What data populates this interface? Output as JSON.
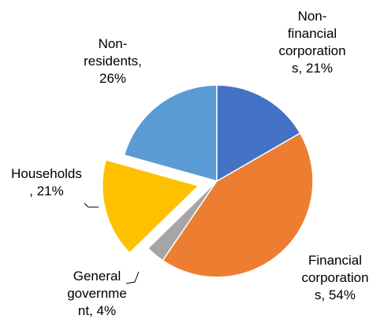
{
  "chart_data": {
    "type": "pie",
    "labels": [
      "Non-financial corporations, 21%",
      "Financial corporations, 54%",
      "General government, 4%",
      "Households, 21%",
      "Non-residents, 26%"
    ],
    "values": [
      21,
      54,
      4,
      21,
      26
    ],
    "colors": [
      "#4472c4",
      "#ed7d31",
      "#a5a5a5",
      "#ffc000",
      "#5b9bd5"
    ],
    "exploded": [
      false,
      false,
      false,
      true,
      false
    ]
  }
}
